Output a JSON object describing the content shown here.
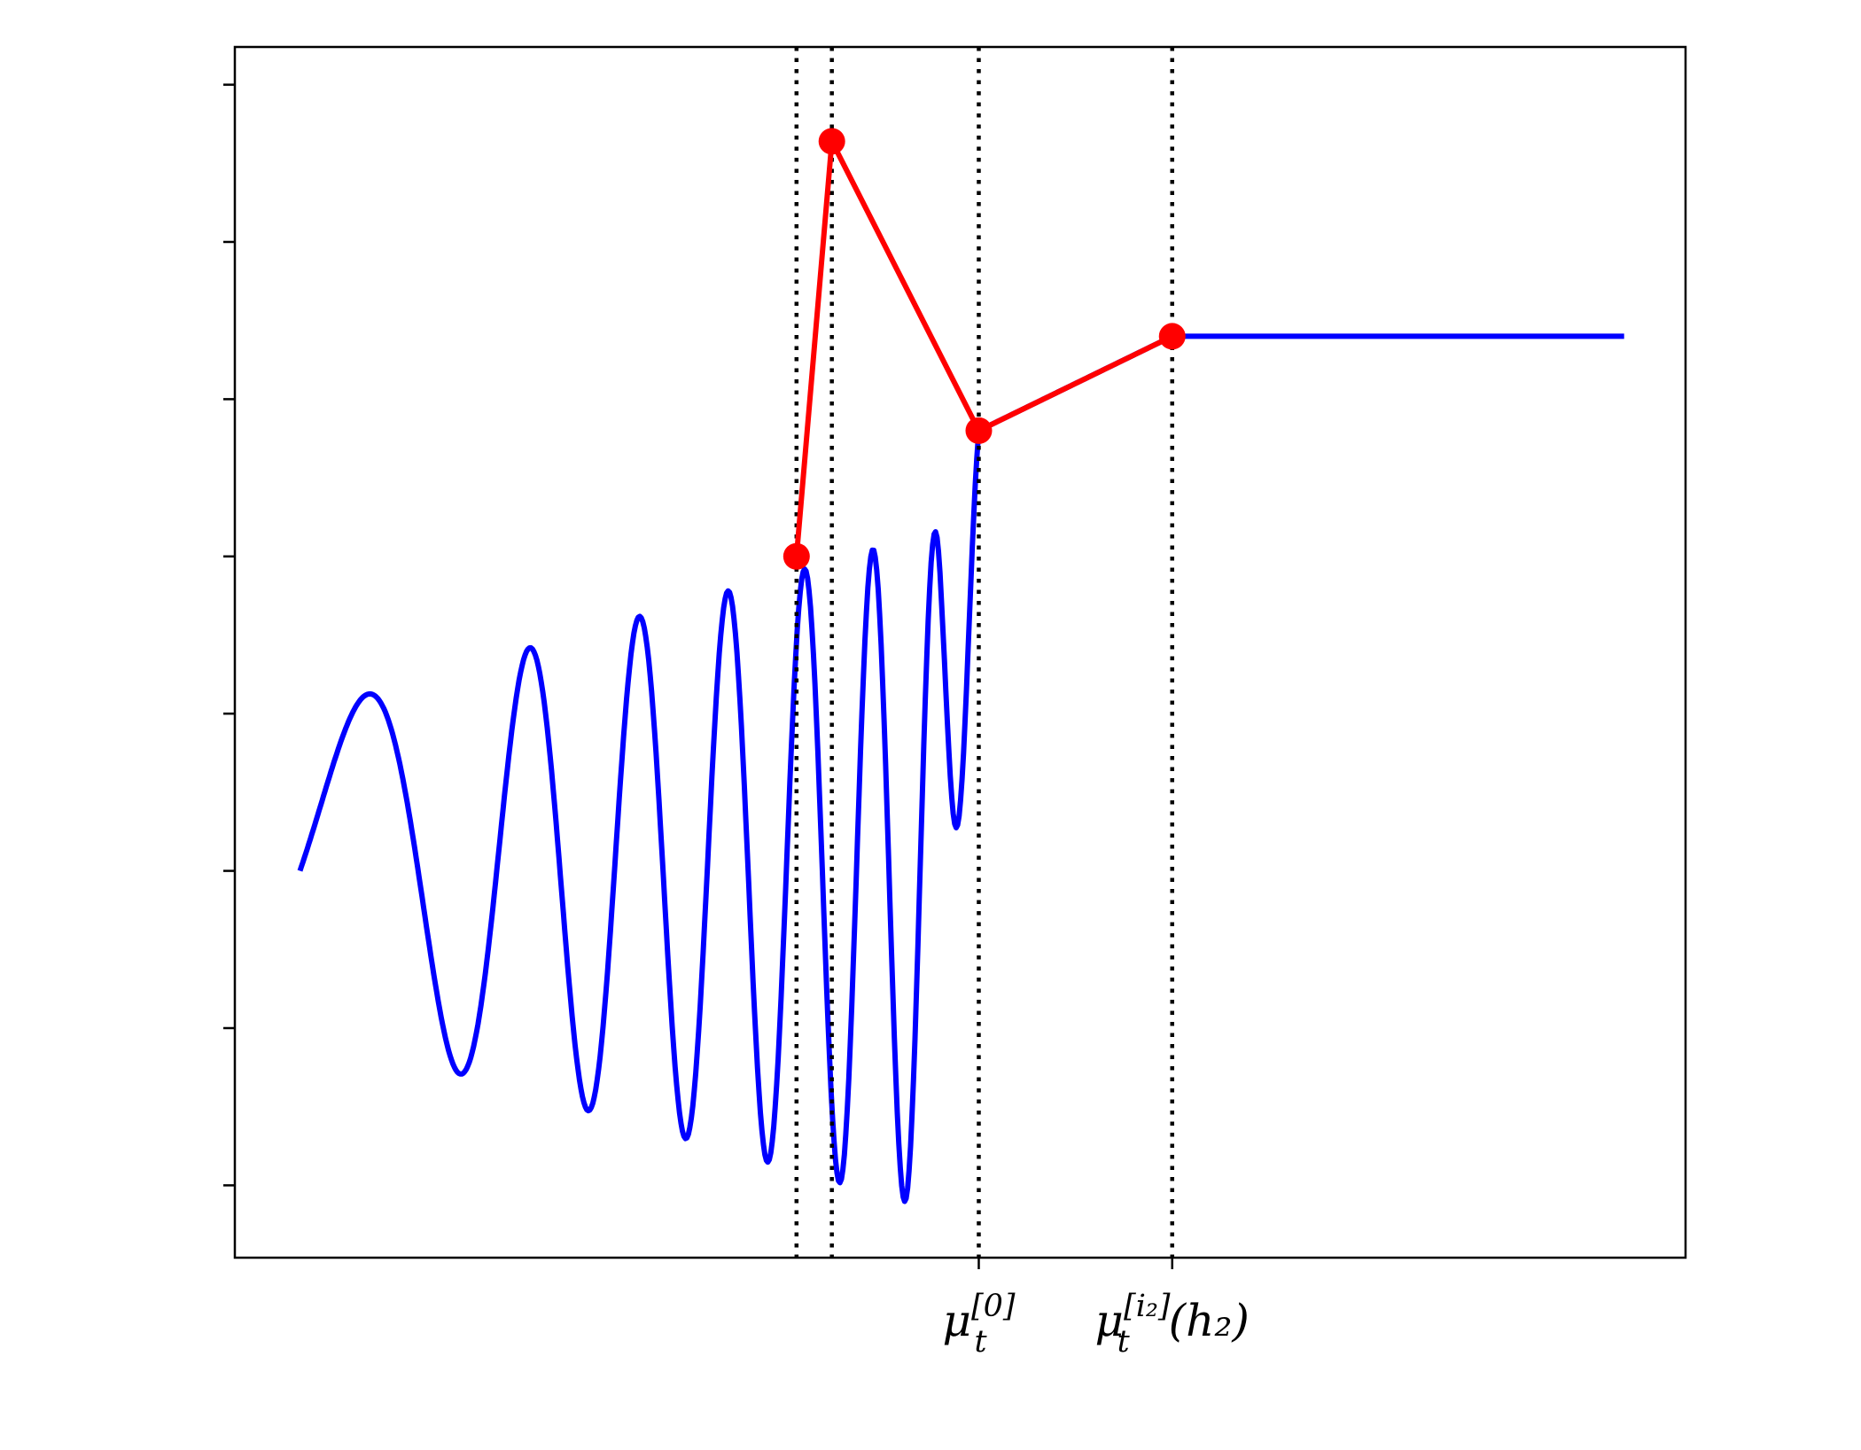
{
  "chart_data": {
    "type": "line",
    "title": "",
    "xlabel": "",
    "ylabel": "",
    "xlim": [
      -0.7,
      7.1
    ],
    "ylim": [
      -1.23,
      2.62
    ],
    "yticks": [
      -1,
      -0.5,
      0,
      0.5,
      1,
      1.5,
      2,
      2.5
    ],
    "xticks": [
      {
        "x": 3.3,
        "label": "μ_t^[0]",
        "base": "μ",
        "sub": "t",
        "sup": "[0]",
        "suffix": ""
      },
      {
        "x": 4.34,
        "label": "μ_t^[i₂](h₂)",
        "base": "μ",
        "sub": "t",
        "sup": "[i₂]",
        "suffix": "(h₂)"
      }
    ],
    "vlines": [
      2.32,
      2.51,
      3.3,
      4.34
    ],
    "curve": {
      "color": "#0000ff",
      "x_start": -0.35,
      "x_end": 6.77,
      "flat_from": 4.34,
      "flat_value": 1.7
    },
    "series": [
      {
        "color": "#ff0000",
        "x": [
          2.32,
          2.51,
          3.3,
          4.34
        ],
        "y": [
          1.0,
          2.32,
          1.4,
          1.7
        ]
      }
    ],
    "grid": false
  }
}
